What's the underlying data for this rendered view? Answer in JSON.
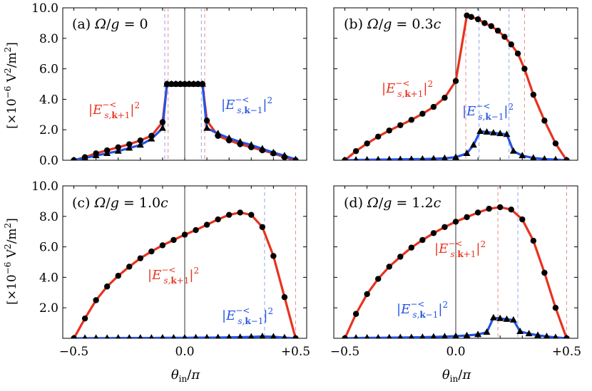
{
  "chart_data": [
    {
      "panel": "(a)",
      "title": "(a) Ω/g = 0",
      "type": "line",
      "xlim": [
        -0.55,
        0.55
      ],
      "ylim": [
        0,
        10
      ],
      "yticks": [
        0.0,
        2.0,
        4.0,
        6.0,
        8.0,
        10.0
      ],
      "ytick_labels": [
        "0.0",
        "2.0",
        "4.0",
        "6.0",
        "8.0",
        "10.0"
      ],
      "xticks": [],
      "xtick_labels": [],
      "vlines_red": [
        -0.075,
        0.09
      ],
      "vlines_blue": [
        -0.09,
        0.075
      ],
      "zero_line": true,
      "series": [
        {
          "name": "|E^{-<}_{s,k+1}|^2",
          "color": "#e8321e",
          "marker": "circle",
          "x": [
            -0.5,
            -0.45,
            -0.4,
            -0.35,
            -0.3,
            -0.25,
            -0.2,
            -0.15,
            -0.1,
            -0.08,
            -0.06,
            -0.04,
            -0.02,
            0.0,
            0.02,
            0.04,
            0.06,
            0.08,
            0.1,
            0.15,
            0.2,
            0.25,
            0.3,
            0.35,
            0.4,
            0.45,
            0.5
          ],
          "y": [
            0.0,
            0.2,
            0.45,
            0.65,
            0.85,
            1.05,
            1.3,
            1.6,
            2.5,
            5.0,
            5.0,
            5.0,
            5.0,
            5.0,
            5.0,
            5.0,
            5.0,
            5.0,
            2.6,
            1.6,
            1.3,
            1.05,
            0.85,
            0.65,
            0.45,
            0.2,
            0.0
          ]
        },
        {
          "name": "|E^{-<}_{s,k-1}|^2",
          "color": "#2453e3",
          "marker": "triangle",
          "x": [
            -0.5,
            -0.45,
            -0.4,
            -0.35,
            -0.3,
            -0.25,
            -0.2,
            -0.15,
            -0.1,
            -0.08,
            -0.06,
            -0.04,
            -0.02,
            0.0,
            0.02,
            0.04,
            0.06,
            0.08,
            0.1,
            0.15,
            0.2,
            0.25,
            0.3,
            0.35,
            0.4,
            0.45,
            0.5
          ],
          "y": [
            0.0,
            0.15,
            0.3,
            0.45,
            0.6,
            0.8,
            1.0,
            1.4,
            2.1,
            5.0,
            5.0,
            5.0,
            5.0,
            5.0,
            5.0,
            5.0,
            5.0,
            5.0,
            2.1,
            1.75,
            1.45,
            1.2,
            1.0,
            0.75,
            0.5,
            0.3,
            0.05
          ]
        }
      ]
    },
    {
      "panel": "(b)",
      "title": "(b) Ω/g = 0.3c",
      "type": "line",
      "xlim": [
        -0.55,
        0.55
      ],
      "ylim": [
        0,
        10
      ],
      "yticks": [
        0.0,
        2.0,
        4.0,
        6.0,
        8.0,
        10.0
      ],
      "ytick_labels": [],
      "xticks": [],
      "xtick_labels": [],
      "vlines_red": [
        0.045,
        0.31
      ],
      "vlines_blue": [
        0.105,
        0.24
      ],
      "zero_line": true,
      "series": [
        {
          "name": "|E^{-<}_{s,k+1}|^2",
          "color": "#e8321e",
          "marker": "circle",
          "x": [
            -0.5,
            -0.45,
            -0.4,
            -0.35,
            -0.3,
            -0.25,
            -0.2,
            -0.15,
            -0.1,
            -0.05,
            0.0,
            0.05,
            0.07,
            0.1,
            0.13,
            0.16,
            0.19,
            0.22,
            0.25,
            0.28,
            0.31,
            0.35,
            0.4,
            0.45,
            0.5
          ],
          "y": [
            0.0,
            0.6,
            1.1,
            1.55,
            1.95,
            2.3,
            2.65,
            3.05,
            3.5,
            4.1,
            5.2,
            9.5,
            9.4,
            9.25,
            9.0,
            8.8,
            8.5,
            8.1,
            7.6,
            7.0,
            6.0,
            4.3,
            2.6,
            1.1,
            0.0
          ]
        },
        {
          "name": "|E^{-<}_{s,k-1}|^2",
          "color": "#2453e3",
          "marker": "triangle",
          "x": [
            -0.5,
            -0.45,
            -0.4,
            -0.35,
            -0.3,
            -0.25,
            -0.2,
            -0.15,
            -0.1,
            -0.05,
            0.0,
            0.05,
            0.08,
            0.11,
            0.14,
            0.17,
            0.2,
            0.23,
            0.26,
            0.3,
            0.35,
            0.4,
            0.45,
            0.5
          ],
          "y": [
            0.0,
            0.02,
            0.03,
            0.04,
            0.05,
            0.06,
            0.07,
            0.08,
            0.1,
            0.13,
            0.2,
            0.45,
            1.0,
            1.9,
            1.85,
            1.8,
            1.75,
            1.7,
            0.6,
            0.3,
            0.15,
            0.08,
            0.04,
            0.0
          ]
        }
      ]
    },
    {
      "panel": "(c)",
      "title": "(c) Ω/g = 1.0c",
      "type": "line",
      "xlim": [
        -0.55,
        0.55
      ],
      "ylim": [
        0,
        10
      ],
      "yticks": [
        2.0,
        4.0,
        6.0,
        8.0,
        10.0
      ],
      "ytick_labels": [
        "2.0",
        "4.0",
        "6.0",
        "8.0",
        "10.0"
      ],
      "xticks": [
        -0.5,
        0.0,
        0.5
      ],
      "xtick_labels": [
        "−0.5",
        "0.0",
        "+0.5"
      ],
      "vlines_red": [
        0.5
      ],
      "vlines_blue": [
        0.36
      ],
      "zero_line": true,
      "series": [
        {
          "name": "|E^{-<}_{s,k+1}|^2",
          "color": "#e8321e",
          "marker": "circle",
          "x": [
            -0.5,
            -0.45,
            -0.4,
            -0.35,
            -0.3,
            -0.25,
            -0.2,
            -0.15,
            -0.1,
            -0.05,
            0.0,
            0.05,
            0.1,
            0.15,
            0.2,
            0.25,
            0.3,
            0.35,
            0.4,
            0.45,
            0.5
          ],
          "y": [
            0.0,
            1.3,
            2.5,
            3.4,
            4.1,
            4.7,
            5.25,
            5.7,
            6.1,
            6.45,
            6.8,
            7.1,
            7.45,
            7.8,
            8.1,
            8.25,
            8.1,
            7.3,
            5.4,
            2.7,
            0.0
          ]
        },
        {
          "name": "|E^{-<}_{s,k-1}|^2",
          "color": "#2453e3",
          "marker": "triangle",
          "x": [
            -0.5,
            -0.45,
            -0.4,
            -0.35,
            -0.3,
            -0.25,
            -0.2,
            -0.15,
            -0.1,
            -0.05,
            0.0,
            0.05,
            0.1,
            0.15,
            0.2,
            0.25,
            0.3,
            0.35,
            0.4,
            0.45,
            0.5
          ],
          "y": [
            0.0,
            0.01,
            0.01,
            0.01,
            0.02,
            0.02,
            0.02,
            0.02,
            0.03,
            0.03,
            0.03,
            0.04,
            0.04,
            0.05,
            0.06,
            0.07,
            0.09,
            0.12,
            0.1,
            0.04,
            0.0
          ]
        }
      ]
    },
    {
      "panel": "(d)",
      "title": "(d) Ω/g = 1.2c",
      "type": "line",
      "xlim": [
        -0.55,
        0.55
      ],
      "ylim": [
        0,
        10
      ],
      "yticks": [
        2.0,
        4.0,
        6.0,
        8.0,
        10.0
      ],
      "ytick_labels": [],
      "xticks": [
        -0.5,
        0.0,
        0.5
      ],
      "xtick_labels": [
        "−0.5",
        "0.0",
        "+0.5"
      ],
      "vlines_red": [
        0.19,
        0.5
      ],
      "vlines_blue": [
        0.28
      ],
      "zero_line": true,
      "series": [
        {
          "name": "|E^{-<}_{s,k+1}|^2",
          "color": "#e8321e",
          "marker": "circle",
          "x": [
            -0.5,
            -0.45,
            -0.4,
            -0.35,
            -0.3,
            -0.25,
            -0.2,
            -0.15,
            -0.1,
            -0.05,
            0.0,
            0.05,
            0.1,
            0.15,
            0.2,
            0.25,
            0.3,
            0.35,
            0.4,
            0.45,
            0.5
          ],
          "y": [
            0.0,
            1.6,
            2.9,
            3.9,
            4.7,
            5.35,
            5.95,
            6.45,
            6.9,
            7.3,
            7.65,
            7.95,
            8.25,
            8.5,
            8.6,
            8.45,
            7.8,
            6.4,
            4.3,
            2.0,
            0.0
          ]
        },
        {
          "name": "|E^{-<}_{s,k-1}|^2",
          "color": "#2453e3",
          "marker": "triangle",
          "x": [
            -0.5,
            -0.45,
            -0.4,
            -0.35,
            -0.3,
            -0.25,
            -0.2,
            -0.15,
            -0.1,
            -0.05,
            0.0,
            0.05,
            0.1,
            0.14,
            0.17,
            0.2,
            0.23,
            0.26,
            0.29,
            0.33,
            0.37,
            0.41,
            0.45,
            0.5
          ],
          "y": [
            0.0,
            0.02,
            0.03,
            0.03,
            0.04,
            0.05,
            0.06,
            0.07,
            0.09,
            0.11,
            0.14,
            0.18,
            0.25,
            0.4,
            1.35,
            1.3,
            1.25,
            1.2,
            0.45,
            0.3,
            0.2,
            0.12,
            0.06,
            0.0
          ]
        }
      ]
    }
  ],
  "labels": {
    "panel_a": "(a)",
    "panel_b": "(b)",
    "panel_c": "(c)",
    "panel_d": "(d)",
    "omega_a": "0",
    "omega_b": "0.3",
    "omega_c": "1.0",
    "omega_d": "1.2",
    "omega_c_suffix": "c",
    "y_axis_label": "[×10⁻⁶ V²/m²]",
    "x_axis_label": "θin/π",
    "kp1_label": "|E^{-<}_{s,k+1}|^2",
    "km1_label": "|E^{-<}_{s,k-1}|^2"
  },
  "colors": {
    "red": "#e8321e",
    "blue": "#2453e3",
    "marker": "#000000"
  }
}
